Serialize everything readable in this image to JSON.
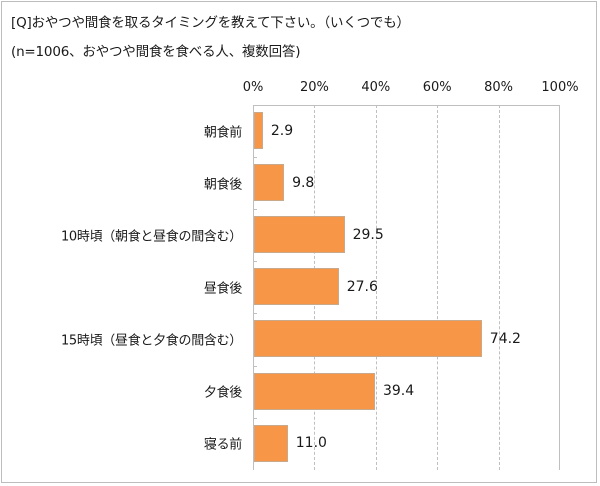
{
  "header": {
    "question": "[Q]おやつや間食を取るタイミングを教えて下さい。（いくつでも）",
    "note": "(n=1006、おやつや間食を食べる人、複数回答)"
  },
  "colors": {
    "bar": "#F79646",
    "bar_border": "#C9A98C",
    "grid": "#BFBFBF"
  },
  "chart_data": {
    "type": "bar",
    "orientation": "horizontal",
    "title": "[Q]おやつや間食を取るタイミングを教えて下さい。（いくつでも）",
    "subtitle": "(n=1006、おやつや間食を食べる人、複数回答)",
    "categories": [
      "朝食前",
      "朝食後",
      "10時頃（朝食と昼食の間含む）",
      "昼食後",
      "15時頃（昼食と夕食の間含む）",
      "夕食後",
      "寝る前"
    ],
    "values": [
      2.9,
      9.8,
      29.5,
      27.6,
      74.2,
      39.4,
      11.0
    ],
    "value_labels": [
      "2.9",
      "9.8",
      "29.5",
      "27.6",
      "74.2",
      "39.4",
      "11.0"
    ],
    "xlabel": "",
    "ylabel": "",
    "xlim": [
      0,
      100
    ],
    "x_ticks": [
      "0%",
      "20%",
      "40%",
      "60%",
      "80%",
      "100%"
    ],
    "x_axis_position": "top",
    "grid": true,
    "legend": null
  }
}
